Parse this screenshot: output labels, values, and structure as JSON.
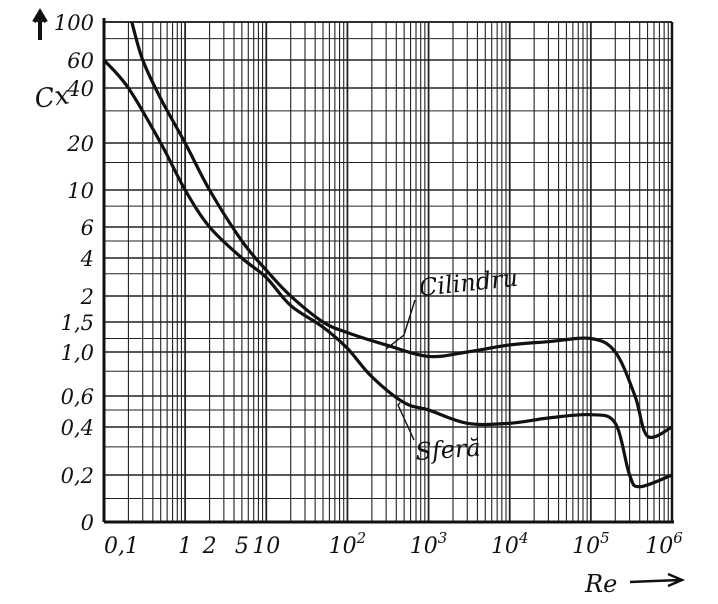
{
  "chart_data": {
    "type": "line",
    "title": "",
    "xlabel": "Re",
    "ylabel": "Cx",
    "x_scale": "log",
    "y_scale": "nonlinear (printed ticks)",
    "grid": true,
    "legend": "none (curves labelled directly)",
    "xlim": [
      0.1,
      1000000
    ],
    "ylim": [
      0,
      100
    ],
    "y_ticks": [
      {
        "value": 0,
        "label": "0"
      },
      {
        "value": 0.2,
        "label": "0,2"
      },
      {
        "value": 0.4,
        "label": "0,4"
      },
      {
        "value": 0.6,
        "label": "0,6"
      },
      {
        "value": 1.0,
        "label": "1,0"
      },
      {
        "value": 1.5,
        "label": "1,5"
      },
      {
        "value": 2,
        "label": "2"
      },
      {
        "value": 4,
        "label": "4"
      },
      {
        "value": 6,
        "label": "6"
      },
      {
        "value": 10,
        "label": "10"
      },
      {
        "value": 20,
        "label": "20"
      },
      {
        "value": 40,
        "label": "40"
      },
      {
        "value": 60,
        "label": "60"
      },
      {
        "value": 100,
        "label": "100"
      }
    ],
    "x_ticks": [
      {
        "value": 0.1,
        "label": "0,1"
      },
      {
        "value": 1,
        "label": "1"
      },
      {
        "value": 2,
        "label": "2"
      },
      {
        "value": 5,
        "label": "5"
      },
      {
        "value": 10,
        "label": "10"
      },
      {
        "value": 100,
        "label": "10",
        "exp": "2"
      },
      {
        "value": 1000,
        "label": "10",
        "exp": "3"
      },
      {
        "value": 10000,
        "label": "10",
        "exp": "4"
      },
      {
        "value": 100000,
        "label": "10",
        "exp": "5"
      },
      {
        "value": 1000000,
        "label": "10",
        "exp": "6"
      }
    ],
    "series": [
      {
        "name": "Cilindru",
        "color": "#111111",
        "points": [
          [
            0.22,
            100
          ],
          [
            0.3,
            60
          ],
          [
            0.5,
            35
          ],
          [
            1,
            20
          ],
          [
            2,
            10
          ],
          [
            5,
            5
          ],
          [
            10,
            3.2
          ],
          [
            20,
            2
          ],
          [
            50,
            1.5
          ],
          [
            100,
            1.3
          ],
          [
            300,
            1.1
          ],
          [
            1000,
            0.95
          ],
          [
            3000,
            1.0
          ],
          [
            10000,
            1.1
          ],
          [
            30000,
            1.15
          ],
          [
            100000,
            1.2
          ],
          [
            200000,
            1.0
          ],
          [
            350000,
            0.6
          ],
          [
            500000,
            0.35
          ],
          [
            1000000,
            0.4
          ]
        ]
      },
      {
        "name": "Sferă",
        "color": "#111111",
        "points": [
          [
            0.1,
            60
          ],
          [
            0.2,
            40
          ],
          [
            0.5,
            20
          ],
          [
            1,
            10
          ],
          [
            2,
            6
          ],
          [
            5,
            4
          ],
          [
            10,
            2.8
          ],
          [
            20,
            1.8
          ],
          [
            50,
            1.4
          ],
          [
            100,
            1.05
          ],
          [
            200,
            0.75
          ],
          [
            500,
            0.55
          ],
          [
            1000,
            0.5
          ],
          [
            3000,
            0.42
          ],
          [
            10000,
            0.42
          ],
          [
            30000,
            0.45
          ],
          [
            100000,
            0.47
          ],
          [
            200000,
            0.42
          ],
          [
            300000,
            0.2
          ],
          [
            400000,
            0.15
          ],
          [
            1000000,
            0.2
          ]
        ]
      }
    ],
    "annotations": [
      "Cilindru",
      "Sferă"
    ]
  }
}
